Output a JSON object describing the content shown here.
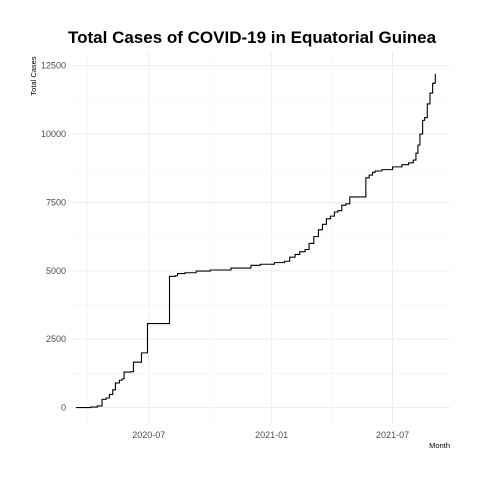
{
  "chart_data": {
    "type": "line",
    "title": "Total Cases of COVID-19 in Equatorial Guinea",
    "xlabel": "Month",
    "ylabel": "Total Cases",
    "x_ticks": [
      "2020-07",
      "2021-01",
      "2021-07"
    ],
    "y_ticks": [
      0,
      2500,
      5000,
      7500,
      10000,
      12500
    ],
    "xlim": [
      "2020-03-08",
      "2021-09-25"
    ],
    "ylim": [
      -600,
      13000
    ],
    "grid": true,
    "legend": "none",
    "line_color": "#000000",
    "series": [
      {
        "x": [
          "2020-03-14",
          "2020-04-05",
          "2020-04-15",
          "2020-04-22",
          "2020-04-28",
          "2020-05-03",
          "2020-05-08",
          "2020-05-12",
          "2020-05-18",
          "2020-05-22",
          "2020-05-25",
          "2020-05-28",
          "2020-06-01",
          "2020-06-04",
          "2020-06-08",
          "2020-06-16",
          "2020-06-20",
          "2020-06-26",
          "2020-06-29",
          "2020-07-01",
          "2020-07-30",
          "2020-08-01",
          "2020-08-10",
          "2020-08-13",
          "2020-08-24",
          "2020-09-10",
          "2020-10-01",
          "2020-11-01",
          "2020-12-01",
          "2020-12-15",
          "2021-01-05",
          "2021-01-20",
          "2021-01-28",
          "2021-02-05",
          "2021-02-12",
          "2021-02-20",
          "2021-02-26",
          "2021-03-05",
          "2021-03-12",
          "2021-03-18",
          "2021-03-24",
          "2021-03-30",
          "2021-04-05",
          "2021-04-10",
          "2021-04-16",
          "2021-04-22",
          "2021-04-28",
          "2021-05-05",
          "2021-05-20",
          "2021-05-22",
          "2021-05-27",
          "2021-06-01",
          "2021-06-05",
          "2021-06-15",
          "2021-07-01",
          "2021-07-15",
          "2021-07-25",
          "2021-08-01",
          "2021-08-05",
          "2021-08-08",
          "2021-08-11",
          "2021-08-15",
          "2021-08-18",
          "2021-08-22",
          "2021-08-26",
          "2021-08-30",
          "2021-09-01",
          "2021-09-03"
        ],
        "y": [
          0,
          20,
          60,
          300,
          350,
          480,
          650,
          900,
          1000,
          1050,
          1300,
          1300,
          1300,
          1310,
          1660,
          1660,
          2000,
          2000,
          3070,
          3070,
          3070,
          4800,
          4820,
          4900,
          4930,
          4990,
          5030,
          5100,
          5200,
          5240,
          5300,
          5350,
          5500,
          5600,
          5700,
          5780,
          6000,
          6250,
          6500,
          6700,
          6900,
          7000,
          7150,
          7200,
          7400,
          7450,
          7700,
          7700,
          7700,
          8400,
          8500,
          8600,
          8650,
          8700,
          8800,
          8880,
          8950,
          9050,
          9300,
          9600,
          10000,
          10500,
          10600,
          11100,
          11500,
          11850,
          11870,
          12200
        ]
      }
    ]
  }
}
